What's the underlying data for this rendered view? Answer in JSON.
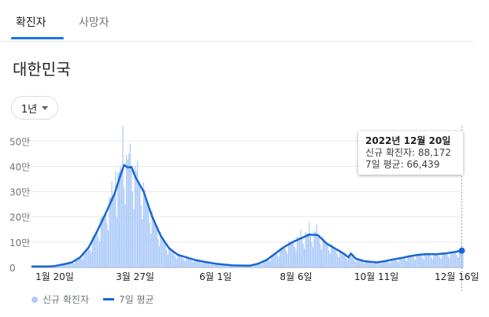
{
  "tabs": [
    {
      "label": "확진자",
      "active": true
    },
    {
      "label": "사망자",
      "active": false
    }
  ],
  "region": "대한민국",
  "range_button": {
    "label": "1년"
  },
  "tooltip": {
    "date": "2022년 12월 20일",
    "new_cases": "신규 확진자: 88,172",
    "avg": "7일 평균: 66,439"
  },
  "legend": {
    "bars": "신규 확진자",
    "line": "7일 평균"
  },
  "colors": {
    "bar": "#aecbfa",
    "line": "#1967d2",
    "accent": "#1a73e8"
  },
  "chart_data": {
    "type": "bar",
    "yticks": [
      "50만",
      "40만",
      "30만",
      "20만",
      "10만",
      "0"
    ],
    "ytick_values": [
      500000,
      400000,
      300000,
      200000,
      100000,
      0
    ],
    "ylim": [
      0,
      560000
    ],
    "x_labels": [
      "1월 20일",
      "3월 27일",
      "6월 1일",
      "8월 6일",
      "10월 11일",
      "12월 16일"
    ],
    "x_range": [
      "2022-01-01",
      "2022-12-21"
    ],
    "x_label_dates": [
      "2022-01-20",
      "2022-03-27",
      "2022-06-01",
      "2022-08-06",
      "2022-10-11",
      "2022-12-16"
    ],
    "series": [
      {
        "name": "신규 확진자",
        "kind": "bar"
      },
      {
        "name": "7일 평균",
        "kind": "line"
      }
    ],
    "avg_points": [
      [
        "2022-01-01",
        4000
      ],
      [
        "2022-01-15",
        4000
      ],
      [
        "2022-01-20",
        5500
      ],
      [
        "2022-01-27",
        12000
      ],
      [
        "2022-02-03",
        20000
      ],
      [
        "2022-02-10",
        40000
      ],
      [
        "2022-02-17",
        80000
      ],
      [
        "2022-02-24",
        145000
      ],
      [
        "2022-03-03",
        215000
      ],
      [
        "2022-03-10",
        290000
      ],
      [
        "2022-03-15",
        365000
      ],
      [
        "2022-03-18",
        405000
      ],
      [
        "2022-03-21",
        395000
      ],
      [
        "2022-03-24",
        398000
      ],
      [
        "2022-03-27",
        360000
      ],
      [
        "2022-04-03",
        300000
      ],
      [
        "2022-04-10",
        200000
      ],
      [
        "2022-04-17",
        125000
      ],
      [
        "2022-04-24",
        75000
      ],
      [
        "2022-05-01",
        50000
      ],
      [
        "2022-05-08",
        40000
      ],
      [
        "2022-05-15",
        30000
      ],
      [
        "2022-05-22",
        23000
      ],
      [
        "2022-06-01",
        15000
      ],
      [
        "2022-06-15",
        8000
      ],
      [
        "2022-06-29",
        7000
      ],
      [
        "2022-07-06",
        15000
      ],
      [
        "2022-07-13",
        30000
      ],
      [
        "2022-07-20",
        55000
      ],
      [
        "2022-07-27",
        80000
      ],
      [
        "2022-08-03",
        100000
      ],
      [
        "2022-08-10",
        115000
      ],
      [
        "2022-08-17",
        130000
      ],
      [
        "2022-08-24",
        128000
      ],
      [
        "2022-08-31",
        95000
      ],
      [
        "2022-09-07",
        75000
      ],
      [
        "2022-09-14",
        55000
      ],
      [
        "2022-09-18",
        40000
      ],
      [
        "2022-09-20",
        55000
      ],
      [
        "2022-09-24",
        35000
      ],
      [
        "2022-10-01",
        25000
      ],
      [
        "2022-10-11",
        20000
      ],
      [
        "2022-10-18",
        25000
      ],
      [
        "2022-10-25",
        32000
      ],
      [
        "2022-11-01",
        38000
      ],
      [
        "2022-11-08",
        45000
      ],
      [
        "2022-11-15",
        50000
      ],
      [
        "2022-11-22",
        53000
      ],
      [
        "2022-11-29",
        52000
      ],
      [
        "2022-12-06",
        55000
      ],
      [
        "2022-12-13",
        60000
      ],
      [
        "2022-12-20",
        66439
      ]
    ],
    "bar_spikes": [
      [
        "2022-03-17",
        621000
      ],
      [
        "2022-03-23",
        490000
      ],
      [
        "2022-03-11",
        380000
      ],
      [
        "2022-03-08",
        340000
      ],
      [
        "2022-03-15",
        400000
      ],
      [
        "2022-03-22",
        450000
      ],
      [
        "2022-03-29",
        420000
      ],
      [
        "2022-04-05",
        270000
      ],
      [
        "2022-08-17",
        180000
      ],
      [
        "2022-08-23",
        170000
      ],
      [
        "2022-08-10",
        150000
      ],
      [
        "2022-12-20",
        88172
      ]
    ],
    "highlight": {
      "date": "2022-12-20",
      "new_cases": 88172,
      "avg": 66439
    }
  }
}
